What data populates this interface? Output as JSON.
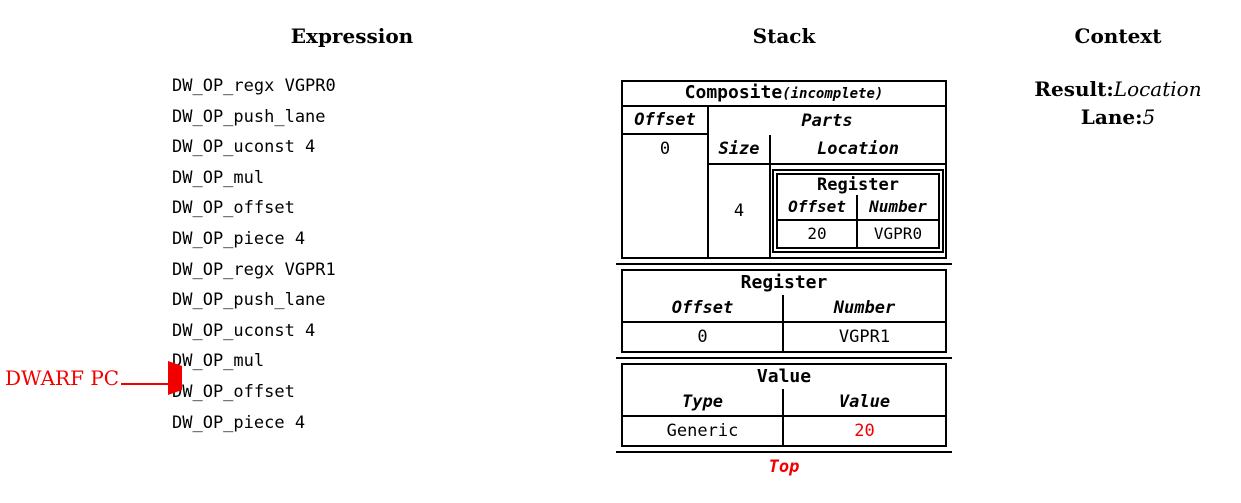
{
  "columns": {
    "expression": {
      "title": "Expression",
      "items": [
        "DW_OP_regx VGPR0",
        "DW_OP_push_lane",
        "DW_OP_uconst 4",
        "DW_OP_mul",
        "DW_OP_offset",
        "DW_OP_piece 4",
        "DW_OP_regx VGPR1",
        "DW_OP_push_lane",
        "DW_OP_uconst 4",
        "DW_OP_mul",
        "DW_OP_offset",
        "DW_OP_piece 4"
      ],
      "pc_label": "DWARF PC",
      "pc_target_item": "DW_OP_offset",
      "pc_target_index": 10
    },
    "stack": {
      "title": "Stack",
      "top_label": "Top",
      "entries": [
        {
          "kind": "composite",
          "title": "Composite",
          "title_suffix": "(incomplete)",
          "offset_header": "Offset",
          "parts_header": "Parts",
          "offset_value": "0",
          "size_header": "Size",
          "location_header": "Location",
          "size_value": "4",
          "nested": {
            "title": "Register",
            "col1_header": "Offset",
            "col2_header": "Number",
            "col1_value": "20",
            "col2_value": "VGPR0"
          }
        },
        {
          "kind": "register",
          "title": "Register",
          "col1_header": "Offset",
          "col2_header": "Number",
          "col1_value": "0",
          "col2_value": "VGPR1"
        },
        {
          "kind": "value",
          "title": "Value",
          "col1_header": "Type",
          "col2_header": "Value",
          "col1_value": "Generic",
          "col2_value": "20"
        }
      ]
    },
    "context": {
      "title": "Context",
      "rows": [
        {
          "label": "Result:",
          "value": "Location"
        },
        {
          "label": "Lane:",
          "value": "5"
        }
      ]
    }
  },
  "colors": {
    "accent_red": "#f20000",
    "border": "#000000",
    "background": "#ffffff"
  }
}
